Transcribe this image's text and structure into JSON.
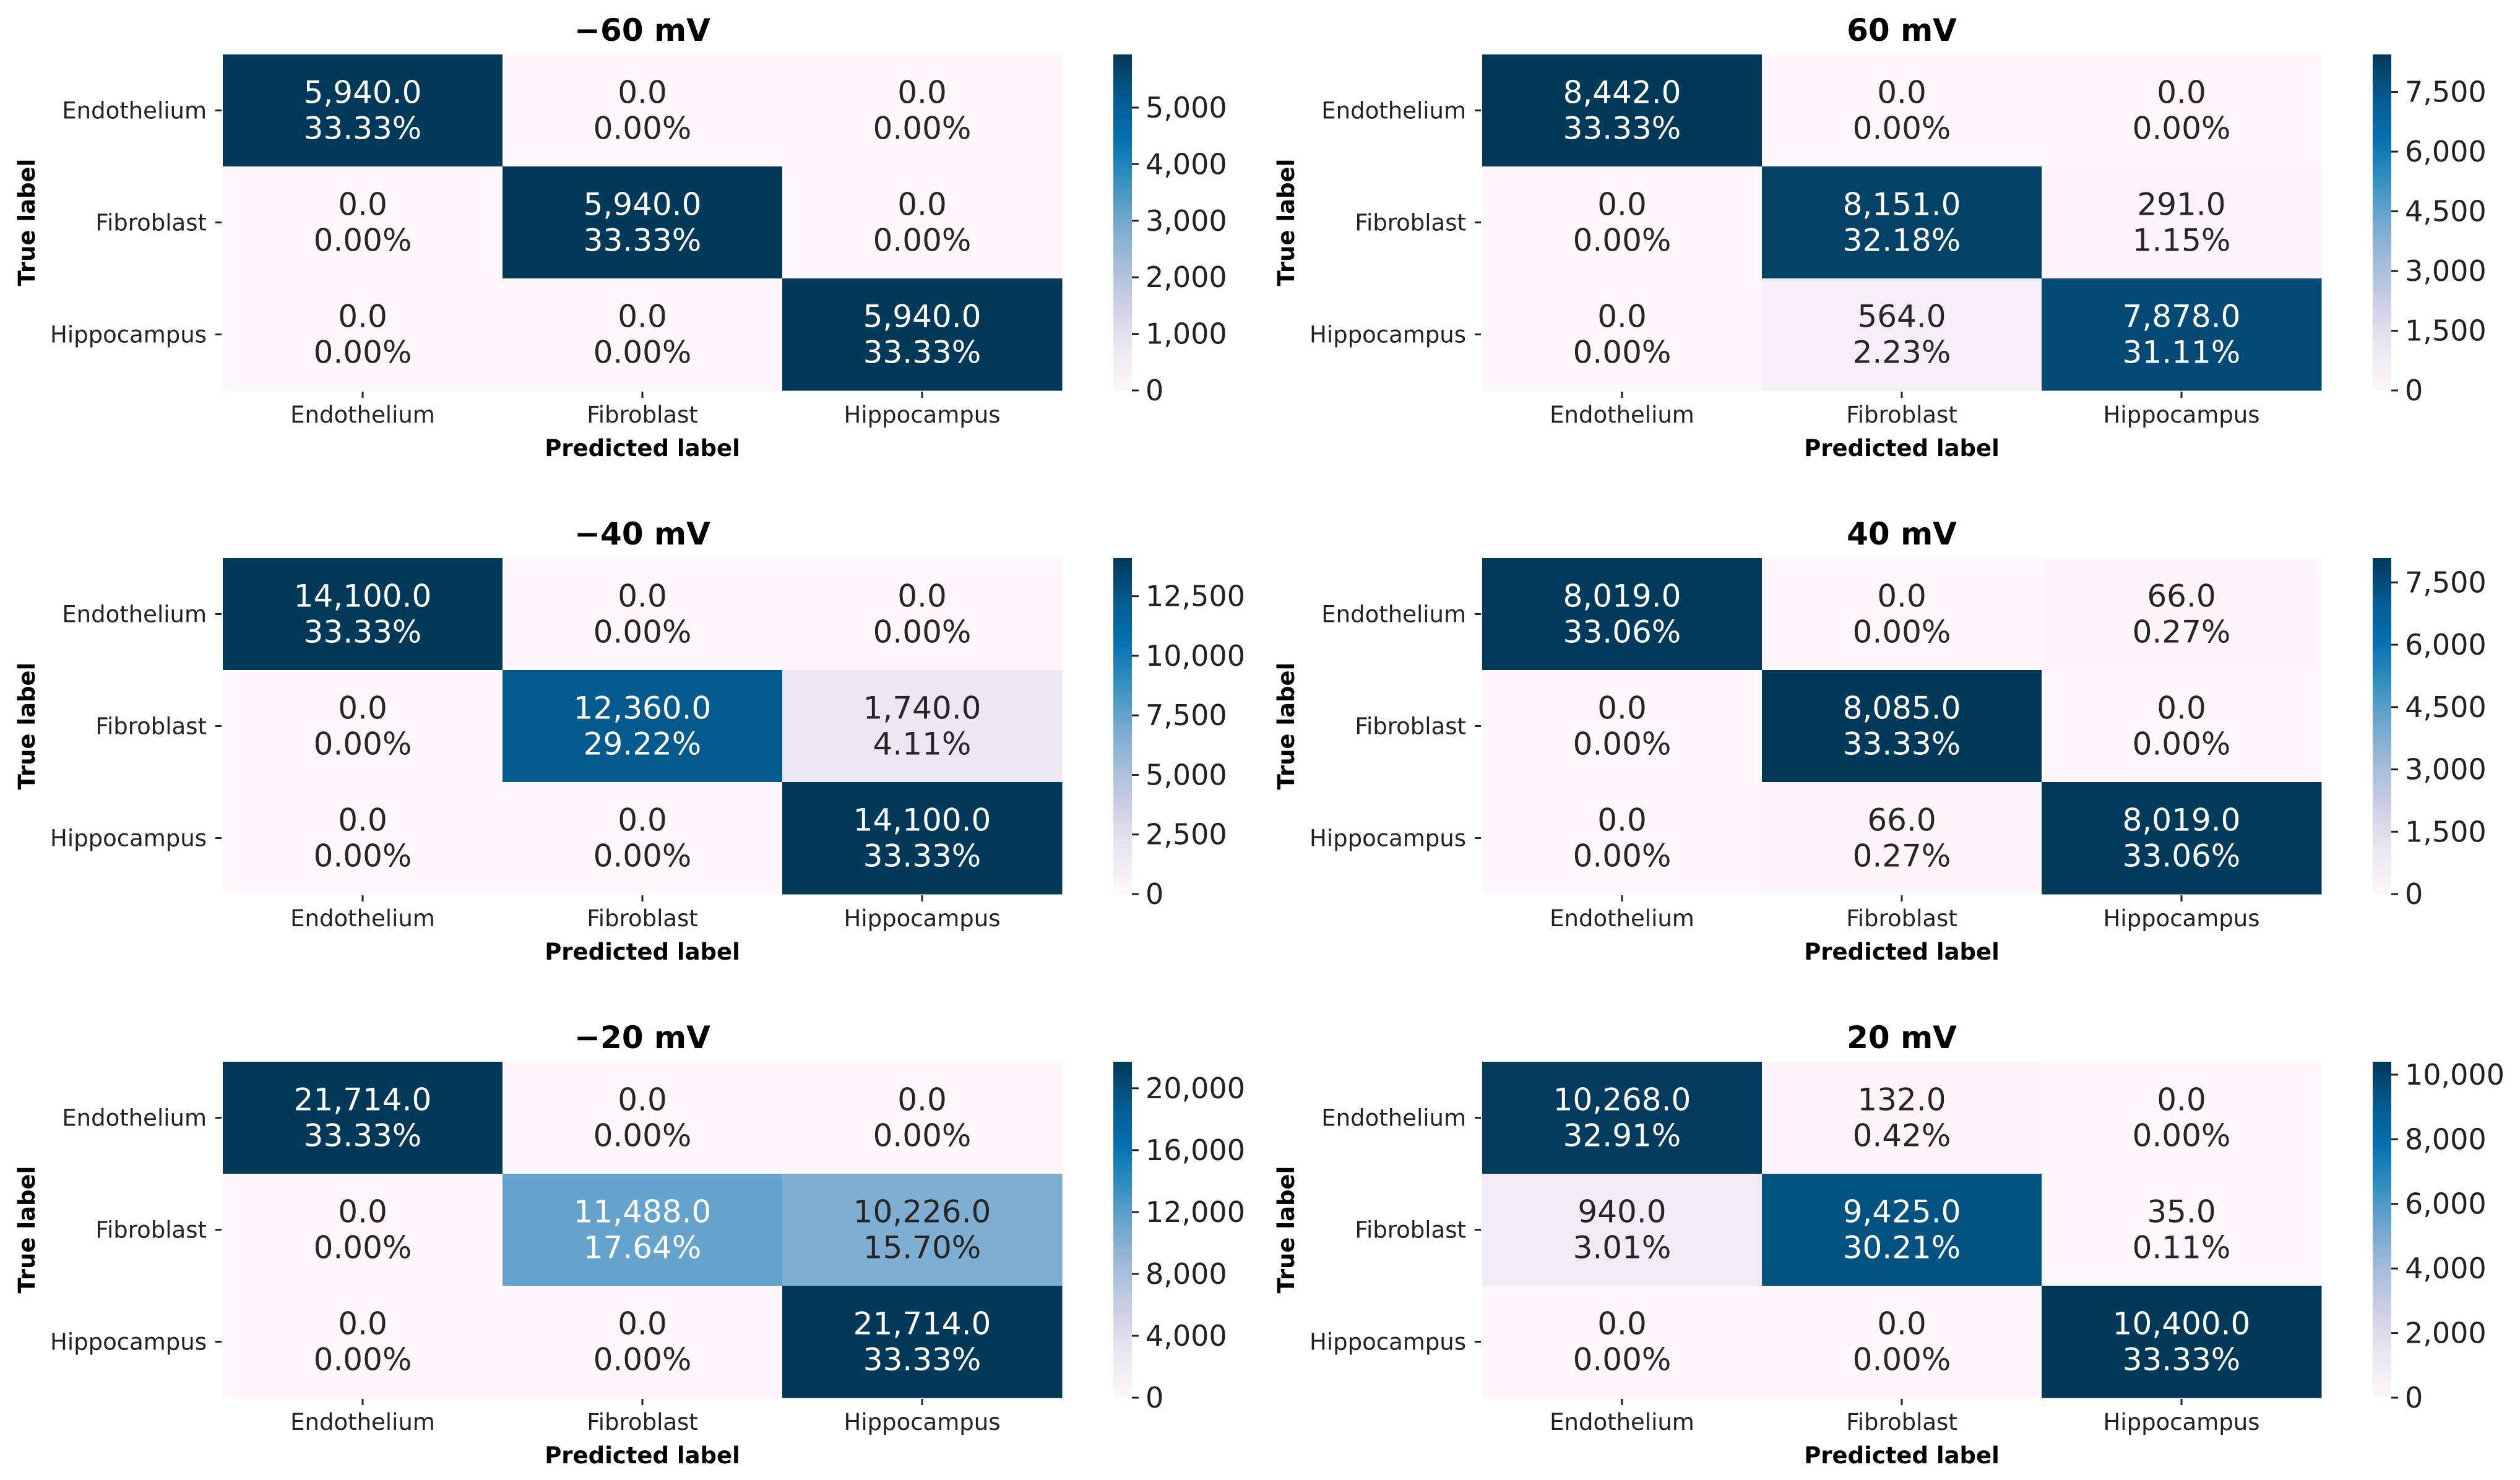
{
  "chart_data": [
    {
      "type": "heatmap",
      "title": "−60 mV",
      "xlabel": "Predicted label",
      "ylabel": "True label",
      "x_categories": [
        "Endothelium",
        "Fibroblast",
        "Hippocampus"
      ],
      "y_categories": [
        "Endothelium",
        "Fibroblast",
        "Hippocampus"
      ],
      "cell_values": [
        [
          "5,940.0",
          "0.0",
          "0.0"
        ],
        [
          "0.0",
          "5,940.0",
          "0.0"
        ],
        [
          "0.0",
          "0.0",
          "5,940.0"
        ]
      ],
      "cell_percents": [
        [
          "33.33%",
          "0.00%",
          "0.00%"
        ],
        [
          "0.00%",
          "33.33%",
          "0.00%"
        ],
        [
          "0.00%",
          "0.00%",
          "33.33%"
        ]
      ],
      "colorbar": {
        "min": 0,
        "max": 5940,
        "ticks": [
          "0",
          "1,000",
          "2,000",
          "3,000",
          "4,000",
          "5,000"
        ],
        "tick_values": [
          0,
          1000,
          2000,
          3000,
          4000,
          5000
        ]
      }
    },
    {
      "type": "heatmap",
      "title": "60 mV",
      "xlabel": "Predicted label",
      "ylabel": "True label",
      "x_categories": [
        "Endothelium",
        "Fibroblast",
        "Hippocampus"
      ],
      "y_categories": [
        "Endothelium",
        "Fibroblast",
        "Hippocampus"
      ],
      "cell_values": [
        [
          "8,442.0",
          "0.0",
          "0.0"
        ],
        [
          "0.0",
          "8,151.0",
          "291.0"
        ],
        [
          "0.0",
          "564.0",
          "7,878.0"
        ]
      ],
      "cell_percents": [
        [
          "33.33%",
          "0.00%",
          "0.00%"
        ],
        [
          "0.00%",
          "32.18%",
          "1.15%"
        ],
        [
          "0.00%",
          "2.23%",
          "31.11%"
        ]
      ],
      "colorbar": {
        "min": 0,
        "max": 8442,
        "ticks": [
          "0",
          "1,500",
          "3,000",
          "4,500",
          "6,000",
          "7,500"
        ],
        "tick_values": [
          0,
          1500,
          3000,
          4500,
          6000,
          7500
        ]
      }
    },
    {
      "type": "heatmap",
      "title": "−40 mV",
      "xlabel": "Predicted label",
      "ylabel": "True label",
      "x_categories": [
        "Endothelium",
        "Fibroblast",
        "Hippocampus"
      ],
      "y_categories": [
        "Endothelium",
        "Fibroblast",
        "Hippocampus"
      ],
      "cell_values": [
        [
          "14,100.0",
          "0.0",
          "0.0"
        ],
        [
          "0.0",
          "12,360.0",
          "1,740.0"
        ],
        [
          "0.0",
          "0.0",
          "14,100.0"
        ]
      ],
      "cell_percents": [
        [
          "33.33%",
          "0.00%",
          "0.00%"
        ],
        [
          "0.00%",
          "29.22%",
          "4.11%"
        ],
        [
          "0.00%",
          "0.00%",
          "33.33%"
        ]
      ],
      "colorbar": {
        "min": 0,
        "max": 14100,
        "ticks": [
          "0",
          "2,500",
          "5,000",
          "7,500",
          "10,000",
          "12,500"
        ],
        "tick_values": [
          0,
          2500,
          5000,
          7500,
          10000,
          12500
        ]
      }
    },
    {
      "type": "heatmap",
      "title": "40 mV",
      "xlabel": "Predicted label",
      "ylabel": "True label",
      "x_categories": [
        "Endothelium",
        "Fibroblast",
        "Hippocampus"
      ],
      "y_categories": [
        "Endothelium",
        "Fibroblast",
        "Hippocampus"
      ],
      "cell_values": [
        [
          "8,019.0",
          "0.0",
          "66.0"
        ],
        [
          "0.0",
          "8,085.0",
          "0.0"
        ],
        [
          "0.0",
          "66.0",
          "8,019.0"
        ]
      ],
      "cell_percents": [
        [
          "33.06%",
          "0.00%",
          "0.27%"
        ],
        [
          "0.00%",
          "33.33%",
          "0.00%"
        ],
        [
          "0.00%",
          "0.27%",
          "33.06%"
        ]
      ],
      "colorbar": {
        "min": 0,
        "max": 8085,
        "ticks": [
          "0",
          "1,500",
          "3,000",
          "4,500",
          "6,000",
          "7,500"
        ],
        "tick_values": [
          0,
          1500,
          3000,
          4500,
          6000,
          7500
        ]
      }
    },
    {
      "type": "heatmap",
      "title": "−20 mV",
      "xlabel": "Predicted label",
      "ylabel": "True label",
      "x_categories": [
        "Endothelium",
        "Fibroblast",
        "Hippocampus"
      ],
      "y_categories": [
        "Endothelium",
        "Fibroblast",
        "Hippocampus"
      ],
      "cell_values": [
        [
          "21,714.0",
          "0.0",
          "0.0"
        ],
        [
          "0.0",
          "11,488.0",
          "10,226.0"
        ],
        [
          "0.0",
          "0.0",
          "21,714.0"
        ]
      ],
      "cell_percents": [
        [
          "33.33%",
          "0.00%",
          "0.00%"
        ],
        [
          "0.00%",
          "17.64%",
          "15.70%"
        ],
        [
          "0.00%",
          "0.00%",
          "33.33%"
        ]
      ],
      "colorbar": {
        "min": 0,
        "max": 21714,
        "ticks": [
          "0",
          "4,000",
          "8,000",
          "12,000",
          "16,000",
          "20,000"
        ],
        "tick_values": [
          0,
          4000,
          8000,
          12000,
          16000,
          20000
        ]
      }
    },
    {
      "type": "heatmap",
      "title": "20 mV",
      "xlabel": "Predicted label",
      "ylabel": "True label",
      "x_categories": [
        "Endothelium",
        "Fibroblast",
        "Hippocampus"
      ],
      "y_categories": [
        "Endothelium",
        "Fibroblast",
        "Hippocampus"
      ],
      "cell_values": [
        [
          "10,268.0",
          "132.0",
          "0.0"
        ],
        [
          "940.0",
          "9,425.0",
          "35.0"
        ],
        [
          "0.0",
          "0.0",
          "10,400.0"
        ]
      ],
      "cell_percents": [
        [
          "32.91%",
          "0.42%",
          "0.00%"
        ],
        [
          "3.01%",
          "30.21%",
          "0.11%"
        ],
        [
          "0.00%",
          "0.00%",
          "33.33%"
        ]
      ],
      "colorbar": {
        "min": 0,
        "max": 10400,
        "ticks": [
          "0",
          "2,000",
          "4,000",
          "6,000",
          "8,000",
          "10,000"
        ],
        "tick_values": [
          0,
          2000,
          4000,
          6000,
          8000,
          10000
        ]
      }
    }
  ],
  "colormap": {
    "name": "PuBu",
    "stops": [
      "#fff7fb",
      "#ece7f2",
      "#d0d1e6",
      "#a6bddb",
      "#74a9cf",
      "#3690c0",
      "#0570b0",
      "#045a8d",
      "#023858"
    ]
  }
}
